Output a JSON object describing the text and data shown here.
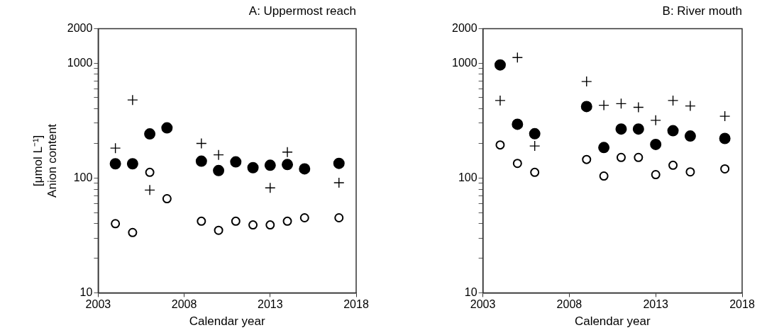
{
  "chart_data": [
    {
      "type": "scatter",
      "title": "A: Uppermost reach",
      "xlabel": "Calendar year",
      "ylabel": "[μmol L⁻¹] Anion content",
      "log": "y",
      "grid": false,
      "legend": false,
      "x": [
        2004,
        2005,
        2006,
        2007,
        2009,
        2010,
        2011,
        2012,
        2013,
        2014,
        2015,
        2017
      ],
      "xlim": [
        2003,
        2018
      ],
      "xticks": [
        2003,
        2008,
        2013,
        2018
      ],
      "ylim": [
        10,
        2000
      ],
      "yticks": [
        10,
        {
          "value": 20,
          "label": null
        },
        {
          "value": 30,
          "label": null
        },
        {
          "value": 40,
          "label": null
        },
        {
          "value": 50,
          "label": null
        },
        {
          "value": 60,
          "label": null
        },
        {
          "value": 70,
          "label": null
        },
        {
          "value": 80,
          "label": null
        },
        {
          "value": 90,
          "label": null
        },
        100,
        {
          "value": 200,
          "label": null
        },
        {
          "value": 300,
          "label": null
        },
        {
          "value": 400,
          "label": null
        },
        {
          "value": 500,
          "label": null
        },
        {
          "value": 600,
          "label": null
        },
        {
          "value": 700,
          "label": null
        },
        {
          "value": 800,
          "label": null
        },
        {
          "value": 900,
          "label": null
        },
        1000,
        2000
      ],
      "series": [
        {
          "color": "#000000",
          "marker": "circle",
          "values": [
            133,
            133,
            242,
            273,
            140,
            116,
            138,
            123,
            129,
            131,
            120,
            134
          ]
        },
        {
          "color": "#ffffff",
          "marker": "circle",
          "values": [
            40,
            33.5,
            112,
            66,
            42,
            35,
            42,
            39,
            39,
            42,
            45,
            45
          ]
        },
        {
          "color": "#000000",
          "marker": "cross",
          "values": [
            182,
            478,
            78.5,
            null,
            200,
            159,
            null,
            null,
            82,
            168,
            null,
            91
          ]
        }
      ]
    },
    {
      "type": "scatter",
      "title": "B: River mouth",
      "xlabel": "Calendar year",
      "log": "y",
      "grid": false,
      "legend": false,
      "x": [
        2004,
        2005,
        2006,
        2009,
        2010,
        2011,
        2012,
        2013,
        2014,
        2015,
        2017
      ],
      "xlim": [
        2003,
        2018
      ],
      "xticks": [
        2003,
        2008,
        2013,
        2018
      ],
      "ylim": [
        10,
        2000
      ],
      "yticks": [
        10,
        {
          "value": 20,
          "label": null
        },
        {
          "value": 30,
          "label": null
        },
        {
          "value": 40,
          "label": null
        },
        {
          "value": 50,
          "label": null
        },
        {
          "value": 60,
          "label": null
        },
        {
          "value": 70,
          "label": null
        },
        {
          "value": 80,
          "label": null
        },
        {
          "value": 90,
          "label": null
        },
        100,
        {
          "value": 200,
          "label": null
        },
        {
          "value": 300,
          "label": null
        },
        {
          "value": 400,
          "label": null
        },
        {
          "value": 500,
          "label": null
        },
        {
          "value": 600,
          "label": null
        },
        {
          "value": 700,
          "label": null
        },
        {
          "value": 800,
          "label": null
        },
        {
          "value": 900,
          "label": null
        },
        1000,
        2000
      ],
      "series": [
        {
          "color": "#000000",
          "marker": "circle",
          "values": [
            966,
            294,
            243,
            419,
            184,
            267,
            267,
            196,
            258,
            232,
            221
          ]
        },
        {
          "color": "#ffffff",
          "marker": "circle",
          "values": [
            194,
            134,
            112,
            145,
            104,
            151,
            151,
            107,
            129,
            113,
            120
          ]
        },
        {
          "color": "#000000",
          "marker": "cross",
          "values": [
            473,
            1119,
            190,
            692,
            430,
            444,
            413,
            318,
            473,
            424,
            345
          ]
        }
      ]
    }
  ]
}
